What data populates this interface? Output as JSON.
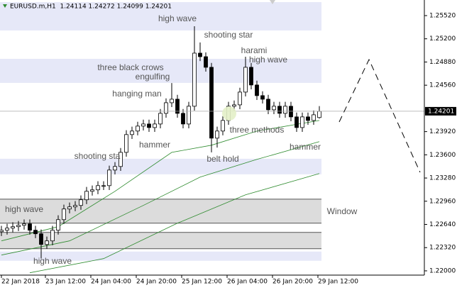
{
  "chart_data": {
    "type": "candlestick",
    "title": "EURUSD.m,H1  1.24114 1.24272 1.24099 1.24201",
    "open": [
      1.2254,
      1.2256,
      1.22589,
      1.22609,
      1.22628,
      1.22648,
      1.2256,
      1.22511,
      1.22364,
      1.22413,
      1.2256,
      1.22706,
      1.22853,
      1.22882,
      1.22902,
      1.2298,
      1.23097,
      1.23117,
      1.23175,
      1.23175,
      1.2339,
      1.23439,
      1.23634,
      1.23879,
      1.23928,
      1.23996,
      1.24025,
      1.23976,
      1.24025,
      1.24172,
      1.24318,
      1.24367,
      1.24172,
      1.24025,
      1.2427,
      1.25002,
      1.24953,
      1.24807,
      1.2383,
      1.23928,
      1.24074,
      1.2427,
      1.24289,
      1.24465,
      1.24807,
      1.24563,
      1.24416,
      1.24367,
      1.24221,
      1.2427,
      1.24172,
      1.2427,
      1.24123,
      1.23976,
      1.24123,
      1.24074,
      1.24114
    ],
    "high": [
      1.2262,
      1.22649,
      1.22669,
      1.22688,
      1.22708,
      1.22708,
      1.2262,
      1.22571,
      1.22473,
      1.2262,
      1.22766,
      1.22913,
      1.22942,
      1.22962,
      1.2304,
      1.23157,
      1.23177,
      1.23235,
      1.23235,
      1.2345,
      1.23499,
      1.23694,
      1.23939,
      1.23988,
      1.24056,
      1.24085,
      1.24085,
      1.24085,
      1.24232,
      1.24378,
      1.2459,
      1.24427,
      1.24232,
      1.2433,
      1.25373,
      1.2515,
      1.25013,
      1.24867,
      1.23988,
      1.24134,
      1.2433,
      1.24349,
      1.24525,
      1.24953,
      1.24867,
      1.24623,
      1.24476,
      1.24427,
      1.2433,
      1.2433,
      1.2433,
      1.2433,
      1.24183,
      1.24183,
      1.24183,
      1.24212,
      1.24272
    ],
    "low": [
      1.2248,
      1.225,
      1.22529,
      1.22549,
      1.22568,
      1.225,
      1.22451,
      1.22169,
      1.22304,
      1.22353,
      1.225,
      1.22646,
      1.22793,
      1.22822,
      1.22842,
      1.2292,
      1.23037,
      1.23057,
      1.23115,
      1.23115,
      1.2333,
      1.23379,
      1.23574,
      1.23819,
      1.23868,
      1.23936,
      1.23916,
      1.23916,
      1.23965,
      1.24112,
      1.24258,
      1.24112,
      1.23965,
      1.23965,
      1.2421,
      1.24893,
      1.24747,
      1.23634,
      1.237,
      1.23868,
      1.24014,
      1.2421,
      1.24229,
      1.24405,
      1.24503,
      1.24356,
      1.24307,
      1.24161,
      1.24161,
      1.24112,
      1.24112,
      1.24063,
      1.23916,
      1.23916,
      1.24014,
      1.24014,
      1.24099
    ],
    "close": [
      1.2256,
      1.22589,
      1.22609,
      1.22628,
      1.22648,
      1.2256,
      1.22511,
      1.22364,
      1.22413,
      1.2256,
      1.22706,
      1.22853,
      1.22882,
      1.22902,
      1.2298,
      1.23097,
      1.23117,
      1.23175,
      1.23175,
      1.2339,
      1.23439,
      1.23634,
      1.23879,
      1.23928,
      1.23996,
      1.24025,
      1.23976,
      1.24025,
      1.24172,
      1.24318,
      1.24367,
      1.24172,
      1.24025,
      1.2427,
      1.25002,
      1.24953,
      1.24807,
      1.2383,
      1.23928,
      1.24074,
      1.2427,
      1.24289,
      1.24465,
      1.24807,
      1.24563,
      1.24416,
      1.24367,
      1.24221,
      1.2427,
      1.24172,
      1.2427,
      1.24123,
      1.23976,
      1.24123,
      1.24074,
      1.24152,
      1.24201
    ],
    "moving_averages": [
      {
        "color": "#2e8b2e",
        "x": [
          0,
          10,
          20,
          30,
          37,
          45,
          56
        ],
        "values": [
          1.22413,
          1.22609,
          1.23097,
          1.23634,
          1.23732,
          1.23927,
          1.24074
        ]
      },
      {
        "color": "#2e8b2e",
        "x": [
          0,
          12,
          25,
          35,
          45,
          56
        ],
        "values": [
          1.22218,
          1.22413,
          1.22902,
          1.23292,
          1.23537,
          1.23781
        ]
      },
      {
        "color": "#2e8b2e",
        "x": [
          5,
          18,
          31,
          43,
          56
        ],
        "values": [
          1.21973,
          1.22169,
          1.22657,
          1.23048,
          1.23341
        ]
      }
    ],
    "zones": [
      {
        "lo": 1.25315,
        "hi": 1.25706,
        "color": "#e6e8f8"
      },
      {
        "lo": 1.24592,
        "hi": 1.24924,
        "color": "#e6e8f8"
      },
      {
        "lo": 1.23331,
        "hi": 1.23546,
        "color": "#e6e8f8"
      },
      {
        "lo": 1.22139,
        "hi": 1.22266,
        "color": "#e6e8f8"
      },
      {
        "lo": 1.22657,
        "hi": 1.22989,
        "color": "#dcdcdc",
        "outline": "#555555"
      },
      {
        "lo": 1.22305,
        "hi": 1.2253,
        "color": "#dcdcdc",
        "outline": "#555555"
      }
    ],
    "annotations": [
      "high wave",
      "shooting star",
      "harami",
      "high wave",
      "three black crows",
      "engulfing",
      "hanging man",
      "hammer",
      "three methods",
      "shooting sta",
      "belt hold",
      "hammer",
      "high wave",
      "high wave",
      "Window"
    ],
    "bull_color": "#ffffff",
    "bear_color": "#000000",
    "xlim": [
      -0.25,
      74.5
    ],
    "xticks": [
      {
        "value": 0,
        "label": "22 Jan 2018"
      },
      {
        "value": 7.75,
        "label": "23 Jan 12:00"
      },
      {
        "value": 15.75,
        "label": "24 Jan 04:00"
      },
      {
        "value": 23.75,
        "label": "24 Jan 20:00"
      },
      {
        "value": 31.75,
        "label": "25 Jan 12:00"
      },
      {
        "value": 39.75,
        "label": "26 Jan 04:00"
      },
      {
        "value": 47.75,
        "label": "26 Jan 20:00"
      },
      {
        "value": 55.75,
        "label": "29 Jan 12:00"
      }
    ],
    "ylim": [
      1.21941,
      1.25735
    ],
    "yticks": [
      {
        "value": 1.2552,
        "label": "1.25520"
      },
      {
        "value": 1.252,
        "label": "1.25200"
      },
      {
        "value": 1.2488,
        "label": "1.24880"
      },
      {
        "value": 1.2456,
        "label": "1.24560"
      },
      {
        "value": 1.2392,
        "label": "1.23920"
      },
      {
        "value": 1.236,
        "label": "1.23600"
      },
      {
        "value": 1.2328,
        "label": "1.23280"
      },
      {
        "value": 1.2296,
        "label": "1.22960"
      },
      {
        "value": 1.2264,
        "label": "1.22640"
      },
      {
        "value": 1.2232,
        "label": "1.22320"
      },
      {
        "value": 1.22,
        "label": "1.22000"
      }
    ]
  }
}
